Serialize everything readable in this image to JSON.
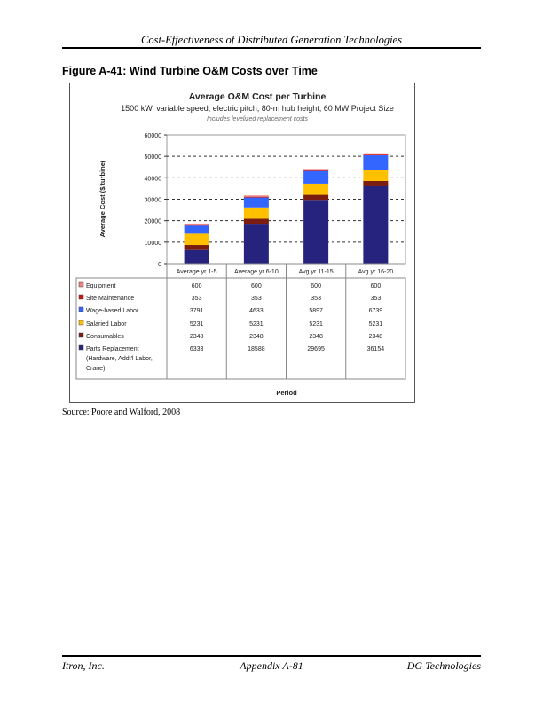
{
  "header": {
    "running_title": "Cost-Effectiveness of Distributed Generation Technologies"
  },
  "figure": {
    "caption": "Figure A-41:  Wind Turbine O&M Costs over Time",
    "source": "Source:  Poore and Walford, 2008"
  },
  "footer": {
    "left": "Itron, Inc.",
    "center": "Appendix A-81",
    "right": "DG Technologies"
  },
  "chart_data": {
    "type": "bar",
    "stacked": true,
    "title": "Average O&M Cost per Turbine",
    "subtitle": "1500 kW, variable speed, electric pitch, 80-m hub height, 60 MW Project Size",
    "note": "Includes levelized replacement costs",
    "xlabel": "Period",
    "ylabel": "Average Cost ($/turbine)",
    "ylim": [
      0,
      60000
    ],
    "yticks": [
      "0",
      "10000",
      "20000",
      "30000",
      "40000",
      "50000",
      "60000"
    ],
    "grid": "dashed horizontal",
    "legend": "data table below chart",
    "categories": [
      "Average yr 1-5",
      "Average yr 6-10",
      "Avg yr 11-15",
      "Avg yr 16-20"
    ],
    "series": [
      {
        "name": "Equipment",
        "color": "#f08080",
        "values": [
          600,
          600,
          600,
          600
        ]
      },
      {
        "name": "Site Maintenance",
        "color": "#cc1111",
        "values": [
          353,
          353,
          353,
          353
        ]
      },
      {
        "name": "Wage-based Labor",
        "color": "#3366ff",
        "values": [
          3791,
          4633,
          5897,
          6739
        ]
      },
      {
        "name": "Salaried Labor",
        "color": "#ffc000",
        "values": [
          5231,
          5231,
          5231,
          5231
        ]
      },
      {
        "name": "Consumables",
        "color": "#7a1c10",
        "values": [
          2348,
          2348,
          2348,
          2348
        ]
      },
      {
        "name": "Parts Replacement (Hardware, Addt'l Labor, Crane)",
        "label_lines": [
          "Parts Replacement",
          "(Hardware, Addt'l Labor,",
          "Crane)"
        ],
        "color": "#26237f",
        "values": [
          6333,
          18588,
          29695,
          36154
        ]
      }
    ]
  }
}
